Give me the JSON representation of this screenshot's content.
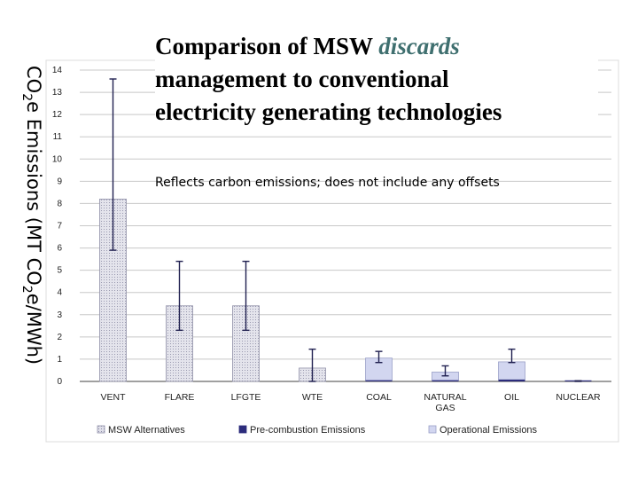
{
  "title": {
    "line1_a": "Comparison of MSW ",
    "line1_em": "discards",
    "line2": "management to conventional",
    "line3": "electricity generating technologies"
  },
  "note": "Reflects carbon emissions; does not include any offsets",
  "ylabel": {
    "a": "CO",
    "sub1": "2",
    "b": "e Emissions (MT CO",
    "sub2": "2",
    "c": "e/MWh)"
  },
  "chart_data": {
    "type": "bar",
    "categories": [
      "VENT",
      "FLARE",
      "LFGTE",
      "WTE",
      "COAL",
      "NATURAL GAS",
      "OIL",
      "NUCLEAR"
    ],
    "series": [
      {
        "name": "MSW Alternatives",
        "values": [
          8.2,
          3.4,
          3.4,
          0.6,
          null,
          null,
          null,
          null
        ]
      },
      {
        "name": "Pre-combustion Emissions",
        "values": [
          null,
          null,
          null,
          null,
          0.05,
          0.05,
          0.08,
          0.02
        ]
      },
      {
        "name": "Operational Emissions",
        "values": [
          null,
          null,
          null,
          null,
          1.0,
          0.37,
          0.8,
          0.0
        ]
      }
    ],
    "error_bars": [
      {
        "low": 5.9,
        "high": 13.6
      },
      {
        "low": 2.3,
        "high": 5.4
      },
      {
        "low": 2.3,
        "high": 5.4
      },
      {
        "low": 0.0,
        "high": 1.45
      },
      {
        "low": 0.85,
        "high": 1.35
      },
      {
        "low": 0.25,
        "high": 0.7
      },
      {
        "low": 0.85,
        "high": 1.45
      },
      {
        "low": 0.0,
        "high": 0.03
      }
    ],
    "yticks": [
      0,
      1,
      2,
      3,
      4,
      5,
      6,
      7,
      8,
      9,
      10,
      11,
      12,
      13,
      14
    ],
    "ylim": [
      0,
      14
    ],
    "grid": true,
    "legend_position": "bottom",
    "colors": {
      "msw": "#d8d8e4",
      "pre": "#2c2c7c",
      "oper": "#d2d6f0",
      "grid": "#c8c8c8",
      "axis": "#404040",
      "error": "#202050"
    }
  }
}
